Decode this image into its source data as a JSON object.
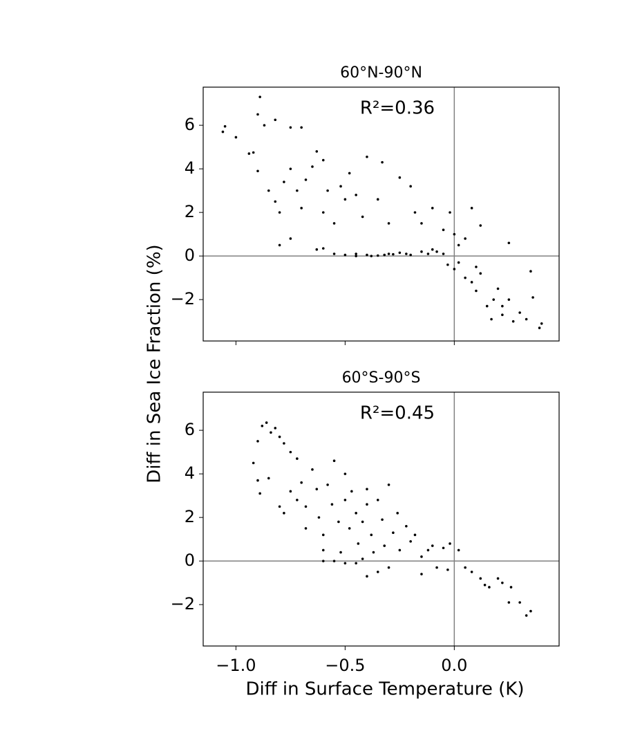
{
  "chart_data": [
    {
      "type": "scatter",
      "title": "60°N-90°N",
      "annotation": "R²=0.36",
      "ylabel": "Diff in Sea Ice Fraction (%)",
      "color": "#000000",
      "xlim": [
        -1.15,
        0.48
      ],
      "ylim": [
        -3.9,
        7.75
      ],
      "xticks": [
        -1,
        -0.5,
        0
      ],
      "yticks": [
        {
          "value": -2,
          "label": "−2"
        },
        0,
        2,
        4,
        6
      ],
      "x": [
        -1.06,
        -1.05,
        -1.0,
        -0.94,
        -0.92,
        -0.9,
        -0.89,
        -0.87,
        -0.82,
        -0.75,
        -0.7,
        -0.9,
        -0.85,
        -0.82,
        -0.8,
        -0.78,
        -0.75,
        -0.72,
        -0.7,
        -0.68,
        -0.65,
        -0.63,
        -0.6,
        -0.6,
        -0.58,
        -0.55,
        -0.52,
        -0.5,
        -0.48,
        -0.45,
        -0.42,
        -0.4,
        -0.35,
        -0.33,
        -0.3,
        -0.25,
        -0.2,
        -0.18,
        -0.15,
        -0.1,
        -0.05,
        -0.02,
        0.0,
        0.02,
        0.05,
        0.08,
        0.12,
        -0.8,
        -0.75,
        -0.63,
        -0.6,
        -0.55,
        -0.5,
        -0.45,
        -0.4,
        -0.35,
        -0.3,
        -0.25,
        -0.2,
        -0.15,
        -0.1,
        -0.05,
        -0.03,
        0.0,
        0.02,
        0.05,
        0.08,
        0.1,
        0.12,
        0.15,
        0.17,
        0.2,
        0.22,
        0.25,
        0.27,
        0.25,
        0.3,
        0.33,
        0.35,
        0.36,
        0.39,
        0.4,
        -0.45,
        -0.38,
        -0.32,
        -0.28,
        -0.22,
        -0.12,
        -0.08,
        0.18,
        0.22,
        0.1
      ],
      "y": [
        5.7,
        5.95,
        5.45,
        4.7,
        4.75,
        6.5,
        7.3,
        6.0,
        6.25,
        5.9,
        5.9,
        3.9,
        3.0,
        2.5,
        2.0,
        3.4,
        4.0,
        3.0,
        2.2,
        3.5,
        4.1,
        4.8,
        4.4,
        2.0,
        3.0,
        1.5,
        3.2,
        2.6,
        3.8,
        2.8,
        1.8,
        4.55,
        2.6,
        4.3,
        1.5,
        3.6,
        3.2,
        2.0,
        1.5,
        2.2,
        1.2,
        2.0,
        1.0,
        0.5,
        0.8,
        2.2,
        1.4,
        0.5,
        0.8,
        0.3,
        0.35,
        0.1,
        0.05,
        0.0,
        0.05,
        0.02,
        0.1,
        0.15,
        0.05,
        0.2,
        0.3,
        0.1,
        -0.4,
        -0.6,
        -0.3,
        -1.0,
        -1.2,
        -0.5,
        -0.8,
        -2.3,
        -2.9,
        -1.5,
        -2.7,
        -2.0,
        -3.0,
        0.6,
        -2.6,
        -2.9,
        -0.7,
        -1.9,
        -3.3,
        -3.1,
        0.1,
        0.0,
        0.05,
        0.08,
        0.1,
        0.1,
        0.2,
        -2.0,
        -2.3,
        -1.6
      ]
    },
    {
      "type": "scatter",
      "title": "60°S-90°S",
      "annotation": "R²=0.45",
      "xlabel": "Diff in Surface Temperature (K)",
      "color": "#000000",
      "xlim": [
        -1.15,
        0.48
      ],
      "ylim": [
        -3.9,
        7.75
      ],
      "xticks": [
        {
          "value": -1,
          "label": "−1.0"
        },
        {
          "value": -0.5,
          "label": "−0.5"
        },
        {
          "value": 0,
          "label": "0.0"
        }
      ],
      "yticks": [
        {
          "value": -2,
          "label": "−2"
        },
        0,
        2,
        4,
        6
      ],
      "x": [
        -0.92,
        -0.9,
        -0.89,
        -0.9,
        -0.88,
        -0.86,
        -0.84,
        -0.82,
        -0.8,
        -0.78,
        -0.75,
        -0.72,
        -0.85,
        -0.8,
        -0.78,
        -0.75,
        -0.72,
        -0.7,
        -0.68,
        -0.68,
        -0.65,
        -0.63,
        -0.62,
        -0.6,
        -0.6,
        -0.58,
        -0.56,
        -0.55,
        -0.53,
        -0.52,
        -0.5,
        -0.5,
        -0.48,
        -0.47,
        -0.45,
        -0.44,
        -0.42,
        -0.4,
        -0.4,
        -0.38,
        -0.37,
        -0.35,
        -0.35,
        -0.33,
        -0.32,
        -0.3,
        -0.28,
        -0.26,
        -0.25,
        -0.22,
        -0.2,
        -0.18,
        -0.15,
        -0.12,
        -0.1,
        -0.05,
        -0.02,
        0.02,
        -0.15,
        -0.08,
        -0.03,
        0.05,
        0.08,
        0.12,
        0.14,
        0.16,
        0.2,
        0.22,
        0.25,
        0.26,
        0.3,
        0.33,
        0.35,
        -0.55,
        -0.5,
        -0.45,
        -0.4,
        -0.3,
        -0.6,
        -0.42
      ],
      "y": [
        4.5,
        3.7,
        3.1,
        5.5,
        6.2,
        6.35,
        5.9,
        6.1,
        5.7,
        5.4,
        5.0,
        4.7,
        3.8,
        2.5,
        2.2,
        3.2,
        2.8,
        3.6,
        2.5,
        1.5,
        4.2,
        3.3,
        2.0,
        1.2,
        0.5,
        3.5,
        2.6,
        4.6,
        1.8,
        0.4,
        4.0,
        2.8,
        1.5,
        3.2,
        2.2,
        0.8,
        1.8,
        3.3,
        2.6,
        1.2,
        0.4,
        2.8,
        -0.5,
        1.9,
        0.7,
        3.5,
        1.3,
        2.2,
        0.5,
        1.6,
        0.9,
        1.2,
        0.2,
        0.5,
        0.7,
        0.6,
        0.8,
        0.5,
        -0.6,
        -0.3,
        -0.4,
        -0.3,
        -0.5,
        -0.8,
        -1.1,
        -1.2,
        -0.8,
        -1.0,
        -1.9,
        -1.2,
        -1.9,
        -2.5,
        -2.3,
        0.0,
        -0.1,
        -0.1,
        -0.7,
        -0.3,
        0.0,
        0.1
      ]
    }
  ]
}
